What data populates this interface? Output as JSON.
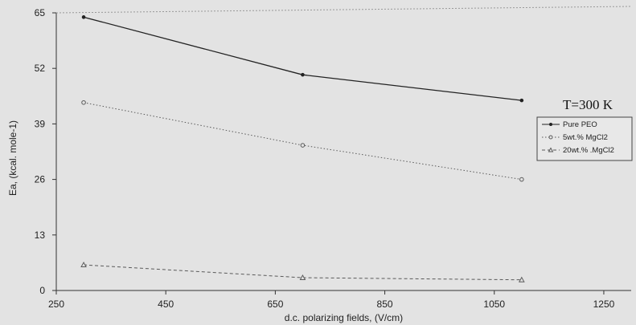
{
  "chart_data": {
    "type": "line",
    "title": "",
    "xlabel": "d.c. polarizing fields, (V/cm)",
    "ylabel": "Ea, (kcal. mole-1)",
    "xlim": [
      250,
      1300
    ],
    "ylim": [
      0,
      65
    ],
    "xticks": [
      250,
      450,
      650,
      850,
      1050,
      1250
    ],
    "yticks": [
      0,
      13,
      26,
      39,
      52,
      65
    ],
    "grid": false,
    "legend_position": "right",
    "annotation": "T=300 K",
    "series": [
      {
        "name": "Pure PEO",
        "x": [
          300,
          700,
          1100
        ],
        "values": [
          64,
          50.5,
          44.5
        ],
        "marker": "dot",
        "color": "#222222",
        "dash": "solid"
      },
      {
        "name": "5wt.% MgCl2",
        "x": [
          300,
          700,
          1100
        ],
        "values": [
          44,
          34,
          26
        ],
        "marker": "circle",
        "color": "#5a5a5a",
        "dash": "dotted"
      },
      {
        "name": "20wt.% .MgCl2",
        "x": [
          300,
          700,
          1100
        ],
        "values": [
          6,
          3,
          2.5
        ],
        "marker": "triangle",
        "color": "#5a5a5a",
        "dash": "dashed"
      }
    ]
  }
}
